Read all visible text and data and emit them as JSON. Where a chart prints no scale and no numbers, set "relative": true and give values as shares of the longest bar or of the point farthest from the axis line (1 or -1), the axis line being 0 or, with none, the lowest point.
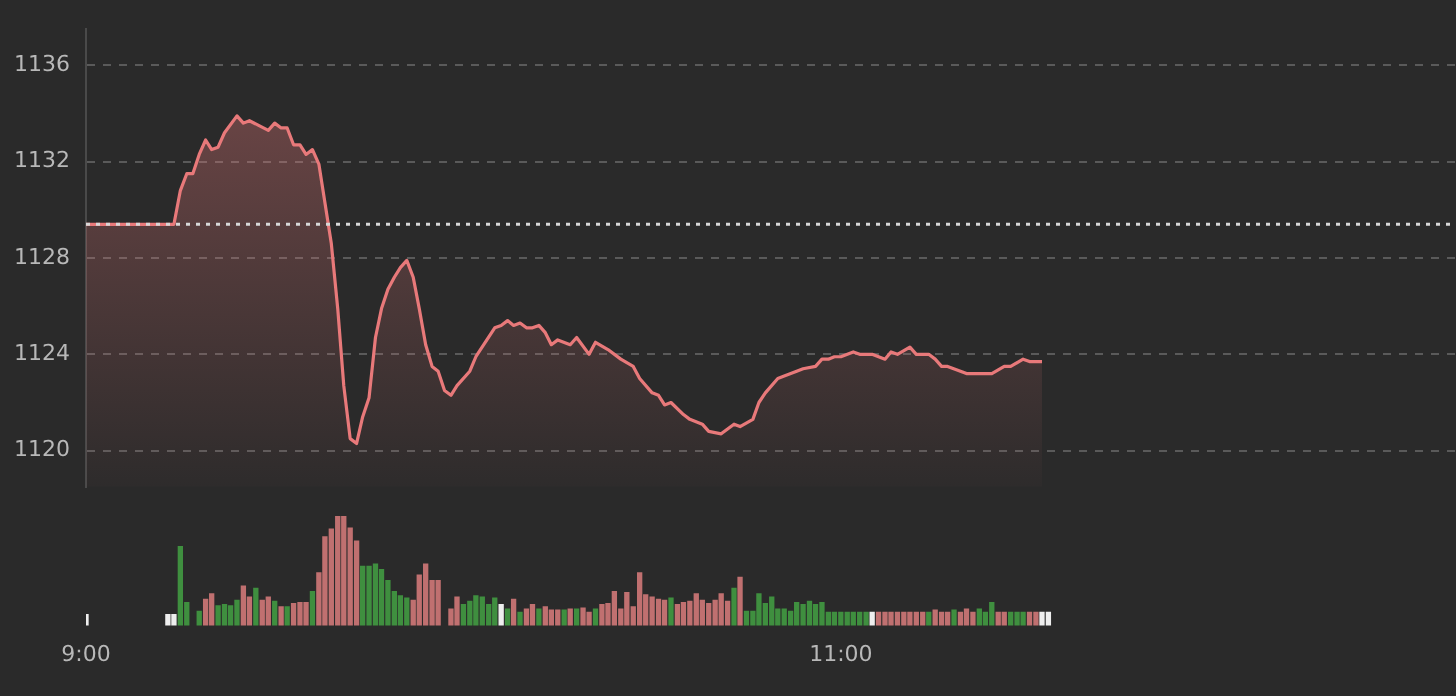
{
  "chart_data": [
    {
      "type": "area",
      "xlim": [
        9,
        12.63
      ],
      "ylim": [
        1118.5,
        1137.5
      ],
      "yticks": [
        1120,
        1124,
        1128,
        1132,
        1136
      ],
      "grid": "y",
      "tick_labels": "y",
      "ref_lines": [
        {
          "axis": "y",
          "value": 1129.4,
          "color": "#d8d8d8",
          "line_style": "dotted"
        }
      ],
      "series": [
        {
          "color": "#e8797a",
          "x": [
            9,
            9.233,
            9.25,
            9.267,
            9.283,
            9.3,
            9.317,
            9.333,
            9.35,
            9.367,
            9.4,
            9.417,
            9.433,
            9.483,
            9.5,
            9.517,
            9.533,
            9.55,
            9.567,
            9.583,
            9.6,
            9.617,
            9.633,
            9.65,
            9.667,
            9.683,
            9.7,
            9.717,
            9.733,
            9.75,
            9.767,
            9.783,
            9.8,
            9.817,
            9.833,
            9.85,
            9.867,
            9.883,
            9.9,
            9.917,
            9.933,
            9.95,
            9.967,
            9.983,
            10.017,
            10.033,
            10.083,
            10.1,
            10.117,
            10.133,
            10.15,
            10.167,
            10.183,
            10.2,
            10.217,
            10.233,
            10.25,
            10.283,
            10.3,
            10.333,
            10.35,
            10.383,
            10.417,
            10.45,
            10.467,
            10.5,
            10.517,
            10.533,
            10.55,
            10.583,
            10.6,
            10.633,
            10.65,
            10.683,
            10.717,
            10.733,
            10.767,
            10.783,
            10.8,
            10.833,
            10.85,
            10.883,
            10.9,
            10.933,
            10.95,
            10.967,
            10.983,
            11,
            11.033,
            11.05,
            11.067,
            11.083,
            11.117,
            11.133,
            11.15,
            11.183,
            11.2,
            11.233,
            11.25,
            11.267,
            11.283,
            11.317,
            11.333,
            11.35,
            11.383,
            11.4,
            11.433,
            11.45,
            11.483,
            11.5,
            11.533
          ],
          "values": [
            1129.4,
            1129.4,
            1130.8,
            1131.5,
            1131.5,
            1132.3,
            1132.9,
            1132.5,
            1132.6,
            1133.2,
            1133.9,
            1133.6,
            1133.7,
            1133.3,
            1133.6,
            1133.4,
            1133.4,
            1132.7,
            1132.7,
            1132.3,
            1132.5,
            1131.9,
            1130.3,
            1128.6,
            1125.9,
            1122.7,
            1120.5,
            1120.3,
            1121.4,
            1122.2,
            1124.7,
            1125.9,
            1126.7,
            1127.2,
            1127.6,
            1127.9,
            1127.2,
            1125.9,
            1124.4,
            1123.5,
            1123.3,
            1122.5,
            1122.3,
            1122.7,
            1123.3,
            1123.9,
            1125.1,
            1125.2,
            1125.4,
            1125.2,
            1125.3,
            1125.1,
            1125.1,
            1125.2,
            1124.9,
            1124.4,
            1124.6,
            1124.4,
            1124.7,
            1124.0,
            1124.5,
            1124.2,
            1123.8,
            1123.5,
            1123.0,
            1122.4,
            1122.3,
            1121.9,
            1122.0,
            1121.5,
            1121.3,
            1121.1,
            1120.8,
            1120.7,
            1121.1,
            1121.0,
            1121.3,
            1122.0,
            1122.4,
            1123.0,
            1123.1,
            1123.3,
            1123.4,
            1123.5,
            1123.8,
            1123.8,
            1123.9,
            1123.9,
            1124.1,
            1124.0,
            1124.0,
            1124.0,
            1123.8,
            1124.1,
            1124.0,
            1124.3,
            1124.0,
            1124.0,
            1123.8,
            1123.5,
            1123.5,
            1123.3,
            1123.2,
            1123.2,
            1123.2,
            1123.2,
            1123.5,
            1123.5,
            1123.8,
            1123.7,
            1123.7
          ]
        }
      ]
    },
    {
      "type": "bar",
      "relative": true,
      "xlim": [
        9,
        12.63
      ],
      "xticks": [
        {
          "value": 9,
          "label": "9:00"
        },
        {
          "value": 11,
          "label": "11:00"
        }
      ],
      "grid": false,
      "x": [
        9,
        9.217,
        9.233,
        9.25,
        9.267,
        9.3,
        9.317,
        9.333,
        9.35,
        9.367,
        9.383,
        9.4,
        9.417,
        9.433,
        9.45,
        9.467,
        9.483,
        9.5,
        9.517,
        9.533,
        9.55,
        9.567,
        9.583,
        9.6,
        9.617,
        9.633,
        9.65,
        9.667,
        9.683,
        9.7,
        9.717,
        9.733,
        9.75,
        9.767,
        9.783,
        9.8,
        9.817,
        9.833,
        9.85,
        9.867,
        9.883,
        9.9,
        9.917,
        9.933,
        9.967,
        9.983,
        10,
        10.017,
        10.033,
        10.05,
        10.067,
        10.083,
        10.1,
        10.117,
        10.133,
        10.15,
        10.167,
        10.183,
        10.2,
        10.217,
        10.233,
        10.25,
        10.267,
        10.283,
        10.3,
        10.317,
        10.333,
        10.35,
        10.367,
        10.383,
        10.4,
        10.417,
        10.433,
        10.45,
        10.467,
        10.483,
        10.5,
        10.517,
        10.533,
        10.55,
        10.567,
        10.583,
        10.6,
        10.617,
        10.633,
        10.65,
        10.667,
        10.683,
        10.7,
        10.717,
        10.733,
        10.75,
        10.767,
        10.783,
        10.8,
        10.817,
        10.833,
        10.85,
        10.867,
        10.883,
        10.9,
        10.917,
        10.933,
        10.95,
        10.967,
        10.983,
        11,
        11.017,
        11.033,
        11.05,
        11.067,
        11.083,
        11.1,
        11.117,
        11.133,
        11.15,
        11.167,
        11.183,
        11.2,
        11.217,
        11.233,
        11.25,
        11.267,
        11.283,
        11.3,
        11.317,
        11.333,
        11.35,
        11.367,
        11.383,
        11.4,
        11.417,
        11.433,
        11.45,
        11.467,
        11.483,
        11.5,
        11.517,
        11.533,
        11.55
      ],
      "values": [
        0.1,
        0.1,
        0.1,
        0.72,
        0.21,
        0.13,
        0.24,
        0.29,
        0.18,
        0.19,
        0.18,
        0.23,
        0.36,
        0.26,
        0.34,
        0.23,
        0.26,
        0.22,
        0.17,
        0.17,
        0.2,
        0.21,
        0.21,
        0.31,
        0.48,
        0.81,
        0.88,
        1,
        1,
        0.89,
        0.77,
        0.54,
        0.54,
        0.56,
        0.51,
        0.41,
        0.31,
        0.27,
        0.25,
        0.23,
        0.46,
        0.56,
        0.41,
        0.41,
        0.15,
        0.26,
        0.19,
        0.22,
        0.27,
        0.26,
        0.19,
        0.25,
        0.19,
        0.15,
        0.24,
        0.12,
        0.15,
        0.19,
        0.15,
        0.17,
        0.14,
        0.14,
        0.14,
        0.15,
        0.15,
        0.16,
        0.12,
        0.15,
        0.19,
        0.2,
        0.31,
        0.15,
        0.3,
        0.17,
        0.48,
        0.28,
        0.26,
        0.24,
        0.23,
        0.25,
        0.19,
        0.21,
        0.22,
        0.29,
        0.23,
        0.2,
        0.23,
        0.29,
        0.22,
        0.34,
        0.44,
        0.13,
        0.13,
        0.29,
        0.2,
        0.26,
        0.15,
        0.15,
        0.13,
        0.21,
        0.19,
        0.22,
        0.19,
        0.21,
        0.12,
        0.12,
        0.12,
        0.12,
        0.12,
        0.12,
        0.12,
        0.12,
        0.12,
        0.12,
        0.12,
        0.12,
        0.12,
        0.12,
        0.12,
        0.12,
        0.12,
        0.14,
        0.12,
        0.12,
        0.14,
        0.12,
        0.15,
        0.12,
        0.15,
        0.12,
        0.21,
        0.12,
        0.12,
        0.12,
        0.12,
        0.12,
        0.12,
        0.12,
        0.12,
        0.12
      ],
      "colors": [
        "#eeeeee",
        "#eeeeee",
        "#eeeeee",
        "#3f8f3f",
        "#3f8f3f",
        "#3f8f3f",
        "#c07070",
        "#c07070",
        "#3f8f3f",
        "#3f8f3f",
        "#3f8f3f",
        "#3f8f3f",
        "#c07070",
        "#c07070",
        "#3f8f3f",
        "#c07070",
        "#c07070",
        "#3f8f3f",
        "#c07070",
        "#3f8f3f",
        "#c07070",
        "#c07070",
        "#c07070",
        "#3f8f3f",
        "#c07070",
        "#c07070",
        "#c07070",
        "#c07070",
        "#c07070",
        "#c07070",
        "#c07070",
        "#3f8f3f",
        "#3f8f3f",
        "#3f8f3f",
        "#3f8f3f",
        "#3f8f3f",
        "#3f8f3f",
        "#3f8f3f",
        "#3f8f3f",
        "#c07070",
        "#c07070",
        "#c07070",
        "#c07070",
        "#c07070",
        "#c07070",
        "#c07070",
        "#3f8f3f",
        "#3f8f3f",
        "#3f8f3f",
        "#3f8f3f",
        "#3f8f3f",
        "#3f8f3f",
        "#eeeeee",
        "#3f8f3f",
        "#c07070",
        "#3f8f3f",
        "#c07070",
        "#c07070",
        "#3f8f3f",
        "#c07070",
        "#c07070",
        "#c07070",
        "#3f8f3f",
        "#c07070",
        "#3f8f3f",
        "#c07070",
        "#c07070",
        "#3f8f3f",
        "#c07070",
        "#c07070",
        "#c07070",
        "#c07070",
        "#c07070",
        "#c07070",
        "#c07070",
        "#c07070",
        "#c07070",
        "#c07070",
        "#c07070",
        "#3f8f3f",
        "#c07070",
        "#c07070",
        "#c07070",
        "#c07070",
        "#c07070",
        "#c07070",
        "#c07070",
        "#c07070",
        "#c07070",
        "#3f8f3f",
        "#c07070",
        "#3f8f3f",
        "#3f8f3f",
        "#3f8f3f",
        "#3f8f3f",
        "#3f8f3f",
        "#3f8f3f",
        "#3f8f3f",
        "#3f8f3f",
        "#3f8f3f",
        "#3f8f3f",
        "#3f8f3f",
        "#3f8f3f",
        "#3f8f3f",
        "#3f8f3f",
        "#3f8f3f",
        "#3f8f3f",
        "#3f8f3f",
        "#3f8f3f",
        "#3f8f3f",
        "#3f8f3f",
        "#eeeeee",
        "#c07070",
        "#c07070",
        "#c07070",
        "#c07070",
        "#c07070",
        "#c07070",
        "#c07070",
        "#c07070",
        "#3f8f3f",
        "#c07070",
        "#c07070",
        "#c07070",
        "#3f8f3f",
        "#c07070",
        "#c07070",
        "#c07070",
        "#3f8f3f",
        "#3f8f3f",
        "#3f8f3f",
        "#c07070",
        "#c07070",
        "#3f8f3f",
        "#3f8f3f",
        "#3f8f3f",
        "#c07070",
        "#c07070",
        "#eeeeee",
        "#eeeeee"
      ]
    }
  ]
}
